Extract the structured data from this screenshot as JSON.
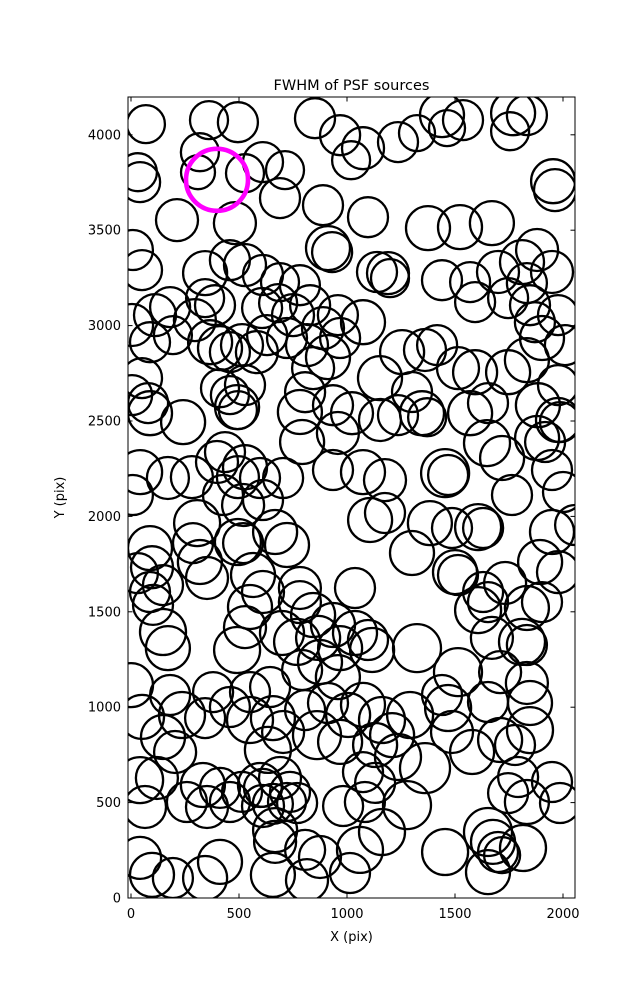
{
  "figure": {
    "background": "#ffffff",
    "frame_color": "#000000"
  },
  "chart_data": {
    "type": "scatter",
    "title": "FWHM of PSF sources",
    "xlabel": "X (pix)",
    "ylabel": "Y (pix)",
    "xlim": [
      0,
      2056
    ],
    "ylim": [
      0,
      4200
    ],
    "xticks": [
      0,
      500,
      1000,
      1500,
      2000
    ],
    "yticks": [
      0,
      500,
      1000,
      1500,
      2000,
      2500,
      3000,
      3500,
      4000
    ],
    "grid": false,
    "legend": "none",
    "marker": "circle-outline",
    "marker_color": "#000000",
    "marker_linewidth": 2.3,
    "highlight_color": "#ff00ff",
    "highlight_linewidth": 4.6,
    "points_format": "[x_pix, y_pix, marker_radius_screen_px]",
    "highlight_point": [
      398,
      3764,
      31
    ],
    "points": [
      [
        69,
        4056,
        19
      ],
      [
        361,
        4077,
        19
      ],
      [
        495,
        4066,
        20
      ],
      [
        319,
        3909,
        19
      ],
      [
        310,
        3804,
        17
      ],
      [
        528,
        3799,
        19
      ],
      [
        611,
        3857,
        20
      ],
      [
        713,
        3815,
        19
      ],
      [
        852,
        4087,
        20
      ],
      [
        32,
        3804,
        19
      ],
      [
        968,
        3998,
        20
      ],
      [
        1019,
        3867,
        19
      ],
      [
        42,
        3752,
        20
      ],
      [
        1074,
        3930,
        21
      ],
      [
        1236,
        3962,
        20
      ],
      [
        1324,
        4009,
        18
      ],
      [
        1440,
        4103,
        22
      ],
      [
        1537,
        4077,
        20
      ],
      [
        1463,
        4035,
        18
      ],
      [
        1769,
        4113,
        22
      ],
      [
        1755,
        4019,
        19
      ],
      [
        1833,
        4103,
        20
      ],
      [
        1954,
        3757,
        22
      ],
      [
        213,
        3553,
        21
      ],
      [
        481,
        3537,
        21
      ],
      [
        690,
        3668,
        20
      ],
      [
        889,
        3631,
        20
      ],
      [
        912,
        3406,
        22
      ],
      [
        931,
        3385,
        20
      ],
      [
        9,
        3396,
        20
      ],
      [
        51,
        3291,
        20
      ],
      [
        343,
        3275,
        22
      ],
      [
        458,
        3343,
        20
      ],
      [
        528,
        3317,
        21
      ],
      [
        611,
        3265,
        20
      ],
      [
        690,
        3228,
        19
      ],
      [
        782,
        3212,
        20
      ],
      [
        1097,
        3568,
        20
      ],
      [
        1375,
        3511,
        22
      ],
      [
        1523,
        3516,
        22
      ],
      [
        1671,
        3537,
        22
      ],
      [
        1963,
        3710,
        21
      ],
      [
        1190,
        3275,
        21
      ],
      [
        1199,
        3249,
        19
      ],
      [
        1139,
        3281,
        20
      ],
      [
        1440,
        3238,
        20
      ],
      [
        1570,
        3228,
        20
      ],
      [
        1699,
        3281,
        21
      ],
      [
        1810,
        3333,
        22
      ],
      [
        1880,
        3396,
        21
      ],
      [
        1949,
        3281,
        21
      ],
      [
        1833,
        3223,
        20
      ],
      [
        5,
        3003,
        21
      ],
      [
        111,
        3055,
        21
      ],
      [
        181,
        3097,
        20
      ],
      [
        88,
        2913,
        20
      ],
      [
        194,
        2950,
        19
      ],
      [
        296,
        3029,
        21
      ],
      [
        389,
        3107,
        20
      ],
      [
        343,
        3144,
        19
      ],
      [
        366,
        2913,
        22
      ],
      [
        412,
        2882,
        22
      ],
      [
        458,
        2861,
        20
      ],
      [
        514,
        2898,
        21
      ],
      [
        607,
        3092,
        20
      ],
      [
        681,
        3118,
        19
      ],
      [
        750,
        3055,
        21
      ],
      [
        829,
        3107,
        20
      ],
      [
        630,
        2950,
        20
      ],
      [
        583,
        2861,
        21
      ],
      [
        722,
        2935,
        20
      ],
      [
        815,
        2898,
        21
      ],
      [
        889,
        2987,
        21
      ],
      [
        958,
        3055,
        20
      ],
      [
        968,
        2935,
        20
      ],
      [
        912,
        2835,
        22
      ],
      [
        843,
        2777,
        21
      ],
      [
        51,
        2725,
        20
      ],
      [
        5,
        2636,
        20
      ],
      [
        412,
        2672,
        19
      ],
      [
        458,
        2636,
        19
      ],
      [
        528,
        2688,
        20
      ],
      [
        806,
        2651,
        20
      ],
      [
        1074,
        3018,
        22
      ],
      [
        1255,
        2861,
        22
      ],
      [
        1361,
        2872,
        21
      ],
      [
        1417,
        2898,
        20
      ],
      [
        1153,
        2725,
        22
      ],
      [
        1301,
        2652,
        20
      ],
      [
        1514,
        2777,
        21
      ],
      [
        1593,
        2756,
        22
      ],
      [
        1746,
        2756,
        22
      ],
      [
        1833,
        2819,
        22
      ],
      [
        1903,
        2935,
        22
      ],
      [
        1870,
        3018,
        20
      ],
      [
        1977,
        3055,
        20
      ],
      [
        2009,
        2898,
        20
      ],
      [
        1977,
        2688,
        20
      ],
      [
        1593,
        3123,
        20
      ],
      [
        1746,
        3144,
        20
      ],
      [
        1847,
        3107,
        20
      ],
      [
        79,
        2594,
        20
      ],
      [
        88,
        2541,
        22
      ],
      [
        241,
        2494,
        22
      ],
      [
        491,
        2573,
        22
      ],
      [
        495,
        2557,
        19
      ],
      [
        42,
        2232,
        22
      ],
      [
        171,
        2201,
        21
      ],
      [
        282,
        2206,
        21
      ],
      [
        398,
        2285,
        21
      ],
      [
        435,
        2337,
        20
      ],
      [
        528,
        2258,
        22
      ],
      [
        495,
        2206,
        21
      ],
      [
        597,
        2201,
        20
      ],
      [
        782,
        2547,
        22
      ],
      [
        792,
        2390,
        22
      ],
      [
        935,
        2583,
        20
      ],
      [
        958,
        2437,
        21
      ],
      [
        935,
        2243,
        20
      ],
      [
        704,
        2201,
        20
      ],
      [
        9,
        2112,
        20
      ],
      [
        426,
        2112,
        20
      ],
      [
        1023,
        2541,
        21
      ],
      [
        1153,
        2505,
        21
      ],
      [
        1236,
        2531,
        20
      ],
      [
        1347,
        2541,
        22
      ],
      [
        1371,
        2520,
        19
      ],
      [
        1570,
        2541,
        22
      ],
      [
        1653,
        2594,
        20
      ],
      [
        1884,
        2583,
        22
      ],
      [
        1977,
        2505,
        22
      ],
      [
        1986,
        2494,
        20
      ],
      [
        1648,
        2384,
        23
      ],
      [
        1718,
        2306,
        22
      ],
      [
        1880,
        2411,
        22
      ],
      [
        1917,
        2390,
        20
      ],
      [
        1949,
        2243,
        20
      ],
      [
        2000,
        2128,
        20
      ],
      [
        1074,
        2232,
        22
      ],
      [
        1176,
        2190,
        21
      ],
      [
        1454,
        2227,
        24
      ],
      [
        1468,
        2217,
        20
      ],
      [
        1764,
        2112,
        20
      ],
      [
        306,
        1965,
        23
      ],
      [
        519,
        2060,
        21
      ],
      [
        611,
        2086,
        20
      ],
      [
        495,
        1866,
        23
      ],
      [
        519,
        1860,
        20
      ],
      [
        667,
        1918,
        22
      ],
      [
        722,
        1850,
        22
      ],
      [
        88,
        1834,
        22
      ],
      [
        97,
        1734,
        21
      ],
      [
        32,
        1703,
        20
      ],
      [
        287,
        1860,
        20
      ],
      [
        319,
        1761,
        22
      ],
      [
        352,
        1677,
        21
      ],
      [
        148,
        1640,
        20
      ],
      [
        88,
        1604,
        20
      ],
      [
        565,
        1693,
        22
      ],
      [
        611,
        1604,
        21
      ],
      [
        782,
        1625,
        21
      ],
      [
        1107,
        1981,
        22
      ],
      [
        1176,
        2018,
        20
      ],
      [
        1384,
        1965,
        22
      ],
      [
        1486,
        1939,
        20
      ],
      [
        1607,
        1944,
        23
      ],
      [
        1630,
        1939,
        20
      ],
      [
        1301,
        1808,
        22
      ],
      [
        1500,
        1708,
        22
      ],
      [
        1514,
        1693,
        20
      ],
      [
        1732,
        1651,
        21
      ],
      [
        1894,
        1761,
        22
      ],
      [
        1977,
        1708,
        21
      ],
      [
        1949,
        1918,
        22
      ],
      [
        2056,
        1955,
        20
      ],
      [
        1037,
        1625,
        20
      ],
      [
        1630,
        1604,
        20
      ],
      [
        102,
        1536,
        20
      ],
      [
        148,
        1394,
        23
      ],
      [
        171,
        1310,
        22
      ],
      [
        551,
        1525,
        22
      ],
      [
        528,
        1420,
        21
      ],
      [
        491,
        1300,
        23
      ],
      [
        699,
        1389,
        22
      ],
      [
        782,
        1551,
        21
      ],
      [
        843,
        1483,
        22
      ],
      [
        769,
        1342,
        23
      ],
      [
        866,
        1363,
        22
      ],
      [
        935,
        1431,
        22
      ],
      [
        968,
        1310,
        22
      ],
      [
        875,
        1237,
        22
      ],
      [
        792,
        1195,
        20
      ],
      [
        958,
        1158,
        22
      ],
      [
        0,
        1116,
        22
      ],
      [
        181,
        1064,
        20
      ],
      [
        380,
        1079,
        20
      ],
      [
        551,
        1079,
        20
      ],
      [
        644,
        1106,
        20
      ],
      [
        1037,
        1389,
        22
      ],
      [
        1116,
        1300,
        22
      ],
      [
        1097,
        1352,
        20
      ],
      [
        1324,
        1310,
        24
      ],
      [
        1607,
        1509,
        23
      ],
      [
        1653,
        1551,
        20
      ],
      [
        1671,
        1363,
        21
      ],
      [
        1833,
        1520,
        22
      ],
      [
        1903,
        1551,
        20
      ],
      [
        1810,
        1342,
        23
      ],
      [
        1833,
        1326,
        20
      ],
      [
        1514,
        1184,
        24
      ],
      [
        1709,
        1184,
        21
      ],
      [
        1833,
        1127,
        21
      ],
      [
        1440,
        1064,
        20
      ],
      [
        51,
        949,
        22
      ],
      [
        236,
        959,
        23
      ],
      [
        343,
        943,
        20
      ],
      [
        148,
        844,
        22
      ],
      [
        204,
        765,
        21
      ],
      [
        458,
        1001,
        20
      ],
      [
        551,
        933,
        23
      ],
      [
        657,
        943,
        22
      ],
      [
        704,
        870,
        21
      ],
      [
        634,
        776,
        23
      ],
      [
        806,
        985,
        20
      ],
      [
        912,
        1022,
        20
      ],
      [
        1005,
        959,
        22
      ],
      [
        861,
        854,
        24
      ],
      [
        968,
        818,
        22
      ],
      [
        42,
        618,
        23
      ],
      [
        120,
        629,
        21
      ],
      [
        333,
        592,
        22
      ],
      [
        412,
        577,
        20
      ],
      [
        514,
        556,
        20
      ],
      [
        597,
        592,
        22
      ],
      [
        611,
        577,
        19
      ],
      [
        690,
        629,
        21
      ],
      [
        736,
        556,
        20
      ],
      [
        1074,
        1012,
        22
      ],
      [
        1162,
        933,
        23
      ],
      [
        1209,
        854,
        22
      ],
      [
        1130,
        802,
        22
      ],
      [
        1236,
        739,
        23
      ],
      [
        1074,
        660,
        20
      ],
      [
        1130,
        603,
        20
      ],
      [
        1292,
        959,
        23
      ],
      [
        1361,
        681,
        25
      ],
      [
        1468,
        996,
        23
      ],
      [
        1486,
        870,
        21
      ],
      [
        1579,
        765,
        22
      ],
      [
        1653,
        1027,
        20
      ],
      [
        1847,
        1022,
        22
      ],
      [
        1709,
        828,
        22
      ],
      [
        1778,
        802,
        20
      ],
      [
        1847,
        880,
        23
      ],
      [
        1792,
        634,
        20
      ],
      [
        1949,
        608,
        20
      ],
      [
        1746,
        550,
        20
      ],
      [
        65,
        477,
        21
      ],
      [
        259,
        503,
        20
      ],
      [
        352,
        477,
        21
      ],
      [
        458,
        503,
        20
      ],
      [
        611,
        482,
        21
      ],
      [
        657,
        493,
        20
      ],
      [
        722,
        503,
        19
      ],
      [
        667,
        356,
        22
      ],
      [
        667,
        294,
        21
      ],
      [
        769,
        498,
        20
      ],
      [
        42,
        210,
        21
      ],
      [
        97,
        121,
        22
      ],
      [
        194,
        105,
        20
      ],
      [
        343,
        105,
        22
      ],
      [
        412,
        189,
        22
      ],
      [
        806,
        252,
        20
      ],
      [
        657,
        121,
        22
      ],
      [
        815,
        94,
        21
      ],
      [
        875,
        215,
        21
      ],
      [
        982,
        482,
        20
      ],
      [
        1083,
        503,
        20
      ],
      [
        1278,
        487,
        24
      ],
      [
        1162,
        346,
        23
      ],
      [
        1060,
        252,
        23
      ],
      [
        1014,
        131,
        20
      ],
      [
        1454,
        241,
        23
      ],
      [
        1653,
        346,
        24
      ],
      [
        1676,
        294,
        22
      ],
      [
        1699,
        241,
        20
      ],
      [
        1718,
        225,
        18
      ],
      [
        1815,
        262,
        23
      ],
      [
        1653,
        136,
        22
      ],
      [
        1833,
        503,
        22
      ],
      [
        1986,
        498,
        20
      ]
    ]
  }
}
